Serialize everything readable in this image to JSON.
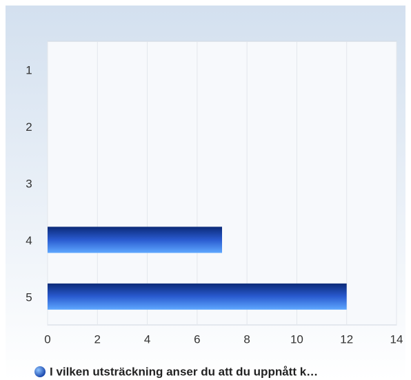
{
  "chart_data": {
    "type": "hbar",
    "categories": [
      "1",
      "2",
      "3",
      "4",
      "5"
    ],
    "series": [
      {
        "name": "I vilken utsträckning anser du att du uppnått k…",
        "color": "#2f63d8",
        "values": [
          0,
          0,
          0,
          7,
          12
        ]
      }
    ],
    "xlim": [
      0,
      14
    ],
    "xticks": [
      0,
      2,
      4,
      6,
      8,
      10,
      12,
      14
    ],
    "grid": true,
    "legend": "bottom"
  }
}
